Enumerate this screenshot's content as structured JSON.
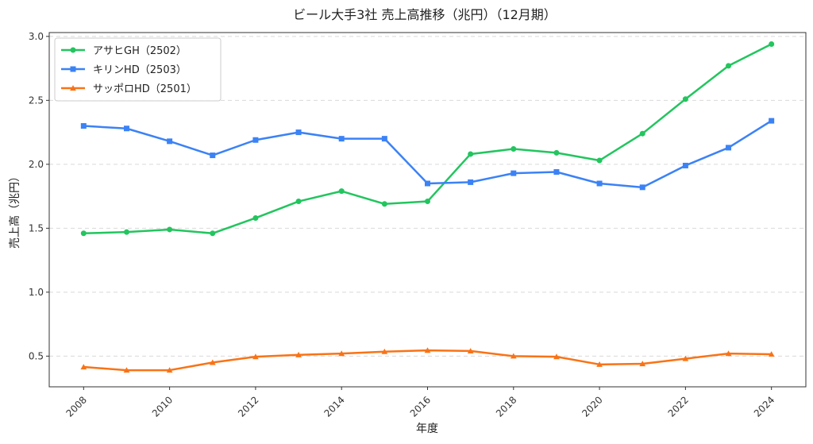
{
  "chart_data": {
    "type": "line",
    "title": "ビール大手3社 売上高推移（兆円）（12月期）",
    "xlabel": "年度",
    "ylabel": "売上高（兆円）",
    "x": [
      2008,
      2009,
      2010,
      2011,
      2012,
      2013,
      2014,
      2015,
      2016,
      2017,
      2018,
      2019,
      2020,
      2021,
      2022,
      2023,
      2024
    ],
    "xticks": [
      "2008",
      "2010",
      "2012",
      "2014",
      "2016",
      "2018",
      "2020",
      "2022",
      "2024"
    ],
    "xlim": [
      2007.2,
      2024.8
    ],
    "ylim": [
      0.26,
      3.03
    ],
    "yticks": [
      "0.5",
      "1.0",
      "1.5",
      "2.0",
      "2.5",
      "3.0"
    ],
    "grid": "y-dashed",
    "legend_position": "top-left",
    "series": [
      {
        "name": "アサヒGH（2502）",
        "color": "#22c55e",
        "marker": "circle",
        "values": [
          1.46,
          1.47,
          1.49,
          1.46,
          1.58,
          1.71,
          1.79,
          1.69,
          1.71,
          2.08,
          2.12,
          2.09,
          2.03,
          2.24,
          2.51,
          2.77,
          2.94
        ]
      },
      {
        "name": "キリンHD（2503）",
        "color": "#3b82f6",
        "marker": "square",
        "values": [
          2.3,
          2.28,
          2.18,
          2.07,
          2.19,
          2.25,
          2.2,
          2.2,
          1.85,
          1.86,
          1.93,
          1.94,
          1.85,
          1.82,
          1.99,
          2.13,
          2.34
        ]
      },
      {
        "name": "サッポロHD（2501）",
        "color": "#f97316",
        "marker": "triangle",
        "values": [
          0.415,
          0.39,
          0.39,
          0.45,
          0.495,
          0.51,
          0.52,
          0.535,
          0.545,
          0.54,
          0.5,
          0.495,
          0.435,
          0.44,
          0.48,
          0.52,
          0.515
        ]
      }
    ]
  }
}
